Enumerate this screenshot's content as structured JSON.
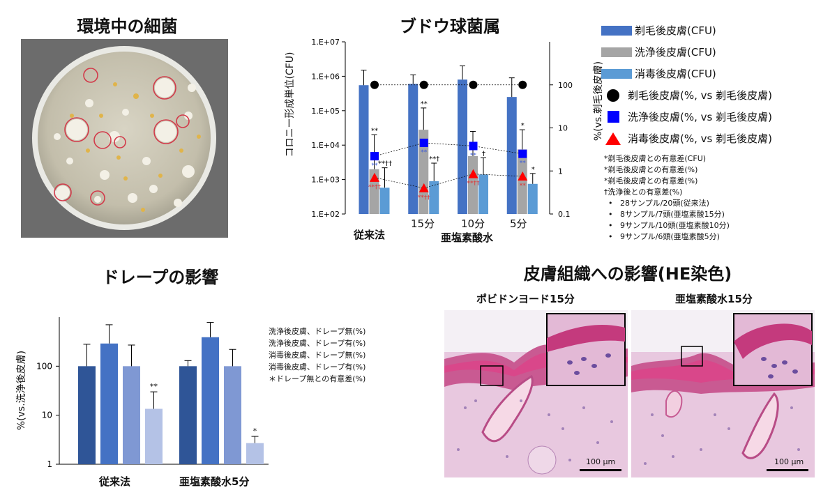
{
  "titles": {
    "environment": "環境中の細菌",
    "staph": "ブドウ球菌属",
    "drape": "ドレープの影響",
    "histology": "皮膚組織への影響(HE染色)"
  },
  "histology": {
    "left_label": "ポビドンヨード15分",
    "right_label": "亜塩素酸水15分",
    "scale": "100 μm"
  },
  "colors": {
    "shave_cfu": "#4472c4",
    "wash_cfu": "#a5a5a5",
    "disinfect_cfu": "#5b9bd5",
    "drape1": "#2f5597",
    "drape2": "#4472c4",
    "drape3": "#7f98d3",
    "drape4": "#b4c2e6"
  },
  "chart_data": [
    {
      "type": "bar",
      "title": "ブドウ球菌属",
      "ylabel": "コロニー形成単位(CFU)",
      "y2label": "%(vs.剃毛後皮膚)",
      "y_scale": "log",
      "ylim": [
        100,
        10000000
      ],
      "y2lim": [
        0.1,
        1000
      ],
      "y_ticks": [
        "1.E+02",
        "1.E+03",
        "1.E+04",
        "1.E+05",
        "1.E+06",
        "1.E+07"
      ],
      "y2_ticks": [
        "0.1",
        "1",
        "10",
        "100"
      ],
      "categories": [
        "従来法",
        "15分",
        "10分",
        "5分"
      ],
      "group_label": "亜塩素酸水",
      "series": [
        {
          "name": "剃毛後皮膚(CFU)",
          "values": [
            550000,
            600000,
            800000,
            250000
          ],
          "err_upper": [
            1500000,
            1100000,
            2000000,
            900000
          ]
        },
        {
          "name": "洗浄後皮膚(CFU)",
          "values": [
            2000,
            28000,
            4800,
            7500
          ],
          "err_upper": [
            20000,
            120000,
            25000,
            28000
          ]
        },
        {
          "name": "消毒後皮膚(CFU)",
          "values": [
            580,
            900,
            1400,
            750
          ],
          "err_upper": [
            2200,
            3000,
            4300,
            1500
          ]
        },
        {
          "name": "剃毛後皮膚(%, vs 剃毛後皮膚)",
          "marker": "circle",
          "values": [
            100,
            100,
            100,
            100
          ]
        },
        {
          "name": "洗浄後皮膚(%, vs 剃毛後皮膚)",
          "marker": "square",
          "values": [
            2.2,
            4.5,
            3.8,
            2.5
          ]
        },
        {
          "name": "消毒後皮膚(%, vs 剃毛後皮膚)",
          "marker": "triangle",
          "values": [
            0.7,
            0.4,
            0.85,
            0.75
          ]
        }
      ],
      "annotations": {
        "wash_marks": [
          "**",
          "**",
          "",
          "*"
        ],
        "disinfect_marks": [
          "**††",
          "**†",
          "†",
          "*"
        ],
        "wash_pct_marks": [
          "**",
          "**",
          "**",
          "**"
        ],
        "disinfect_pct_marks": [
          "**††",
          "**††",
          "**††",
          "**"
        ]
      },
      "notes": [
        "*剃毛後皮膚との有意差(CFU)",
        "*剃毛後皮膚との有意差(%)",
        "*剃毛後皮膚との有意差(%)",
        "†洗浄後との有意差(%)",
        "28サンプル/20頭(従来法)",
        "8サンプル/7頭(亜塩素酸15分)",
        "9サンプル/10頭(亜塩素酸10分)",
        "9サンプル/6頭(亜塩素酸5分)"
      ],
      "legend_position": "right"
    },
    {
      "type": "bar",
      "title": "ドレープの影響",
      "ylabel": "%(vs.洗浄後皮膚)",
      "y_scale": "log",
      "ylim": [
        1,
        1000
      ],
      "y_ticks": [
        "1",
        "10",
        "100"
      ],
      "categories": [
        "従来法",
        "亜塩素酸水5分"
      ],
      "series": [
        {
          "name": "洗浄後皮膚、ドレープ無(%)",
          "values": [
            100,
            100
          ],
          "err_upper": [
            280,
            130
          ]
        },
        {
          "name": "洗浄後皮膚、ドレープ有(%)",
          "values": [
            290,
            390
          ],
          "err_upper": [
            700,
            780
          ]
        },
        {
          "name": "消毒後皮膚、ドレープ無(%)",
          "values": [
            100,
            100
          ],
          "err_upper": [
            270,
            220
          ]
        },
        {
          "name": "消毒後皮膚、ドレープ有(%)",
          "values": [
            13.5,
            2.7
          ],
          "err_upper": [
            30,
            3.7
          ]
        }
      ],
      "marks": [
        "**",
        "*"
      ],
      "footnote": "＊ドレープ無との有意差(%)",
      "legend_position": "right"
    }
  ]
}
